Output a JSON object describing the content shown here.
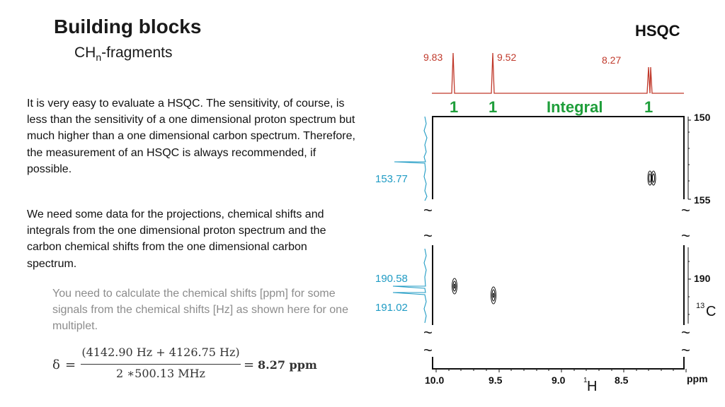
{
  "header": {
    "title": "Building blocks",
    "subtitle_main": "CH",
    "subtitle_sub": "n",
    "subtitle_rest": "-fragments",
    "corner_label": "HSQC"
  },
  "text": {
    "paragraph1": "It is very easy to evaluate a HSQC. The sensitivity, of course, is less than the sensitivity of a one dimensional proton spectrum but much higher than a one dimensional carbon spectrum. Therefore, the measurement of an HSQC is always recommended, if possible.",
    "paragraph2": "We need some data for the projections, chemical shifts and integrals from the one dimensional proton spectrum and the carbon chemical shifts from the one dimensional carbon spectrum.",
    "note": "You need to calculate the chemical shifts [ppm] for some signals from the chemical shifts [Hz] as shown here for one multiplet."
  },
  "formula": {
    "lhs": "δ",
    "equals": "=",
    "numerator": "(4142.90 Hz + 4126.75 Hz)",
    "denominator": "2  ∗500.13 MHz",
    "result": "8.27 ppm"
  },
  "spectrum": {
    "proton_peak_labels": [
      "9.83",
      "9.52",
      "8.27"
    ],
    "integral_values": [
      "1",
      "1",
      "1"
    ],
    "integral_title": "Integral",
    "carbon_peak_labels": [
      "153.77",
      "190.58",
      "191.02"
    ],
    "x_axis_ticks": [
      "10.0",
      "9.5",
      "9.0",
      "8.5"
    ],
    "x_axis_unit": "ppm",
    "x_axis_nucleus_mass": "1",
    "x_axis_nucleus": "H",
    "y_axis_ticks": [
      "150",
      "155",
      "190"
    ],
    "y_axis_nucleus_mass": "13",
    "y_axis_nucleus": "C",
    "break_symbol": "~",
    "colors": {
      "proton_trace": "#c0392b",
      "carbon_trace": "#1f9bc4",
      "integral": "#1e9e3a",
      "peak_label_red": "#c0392b",
      "peak_label_blue": "#1f9bc4"
    }
  }
}
